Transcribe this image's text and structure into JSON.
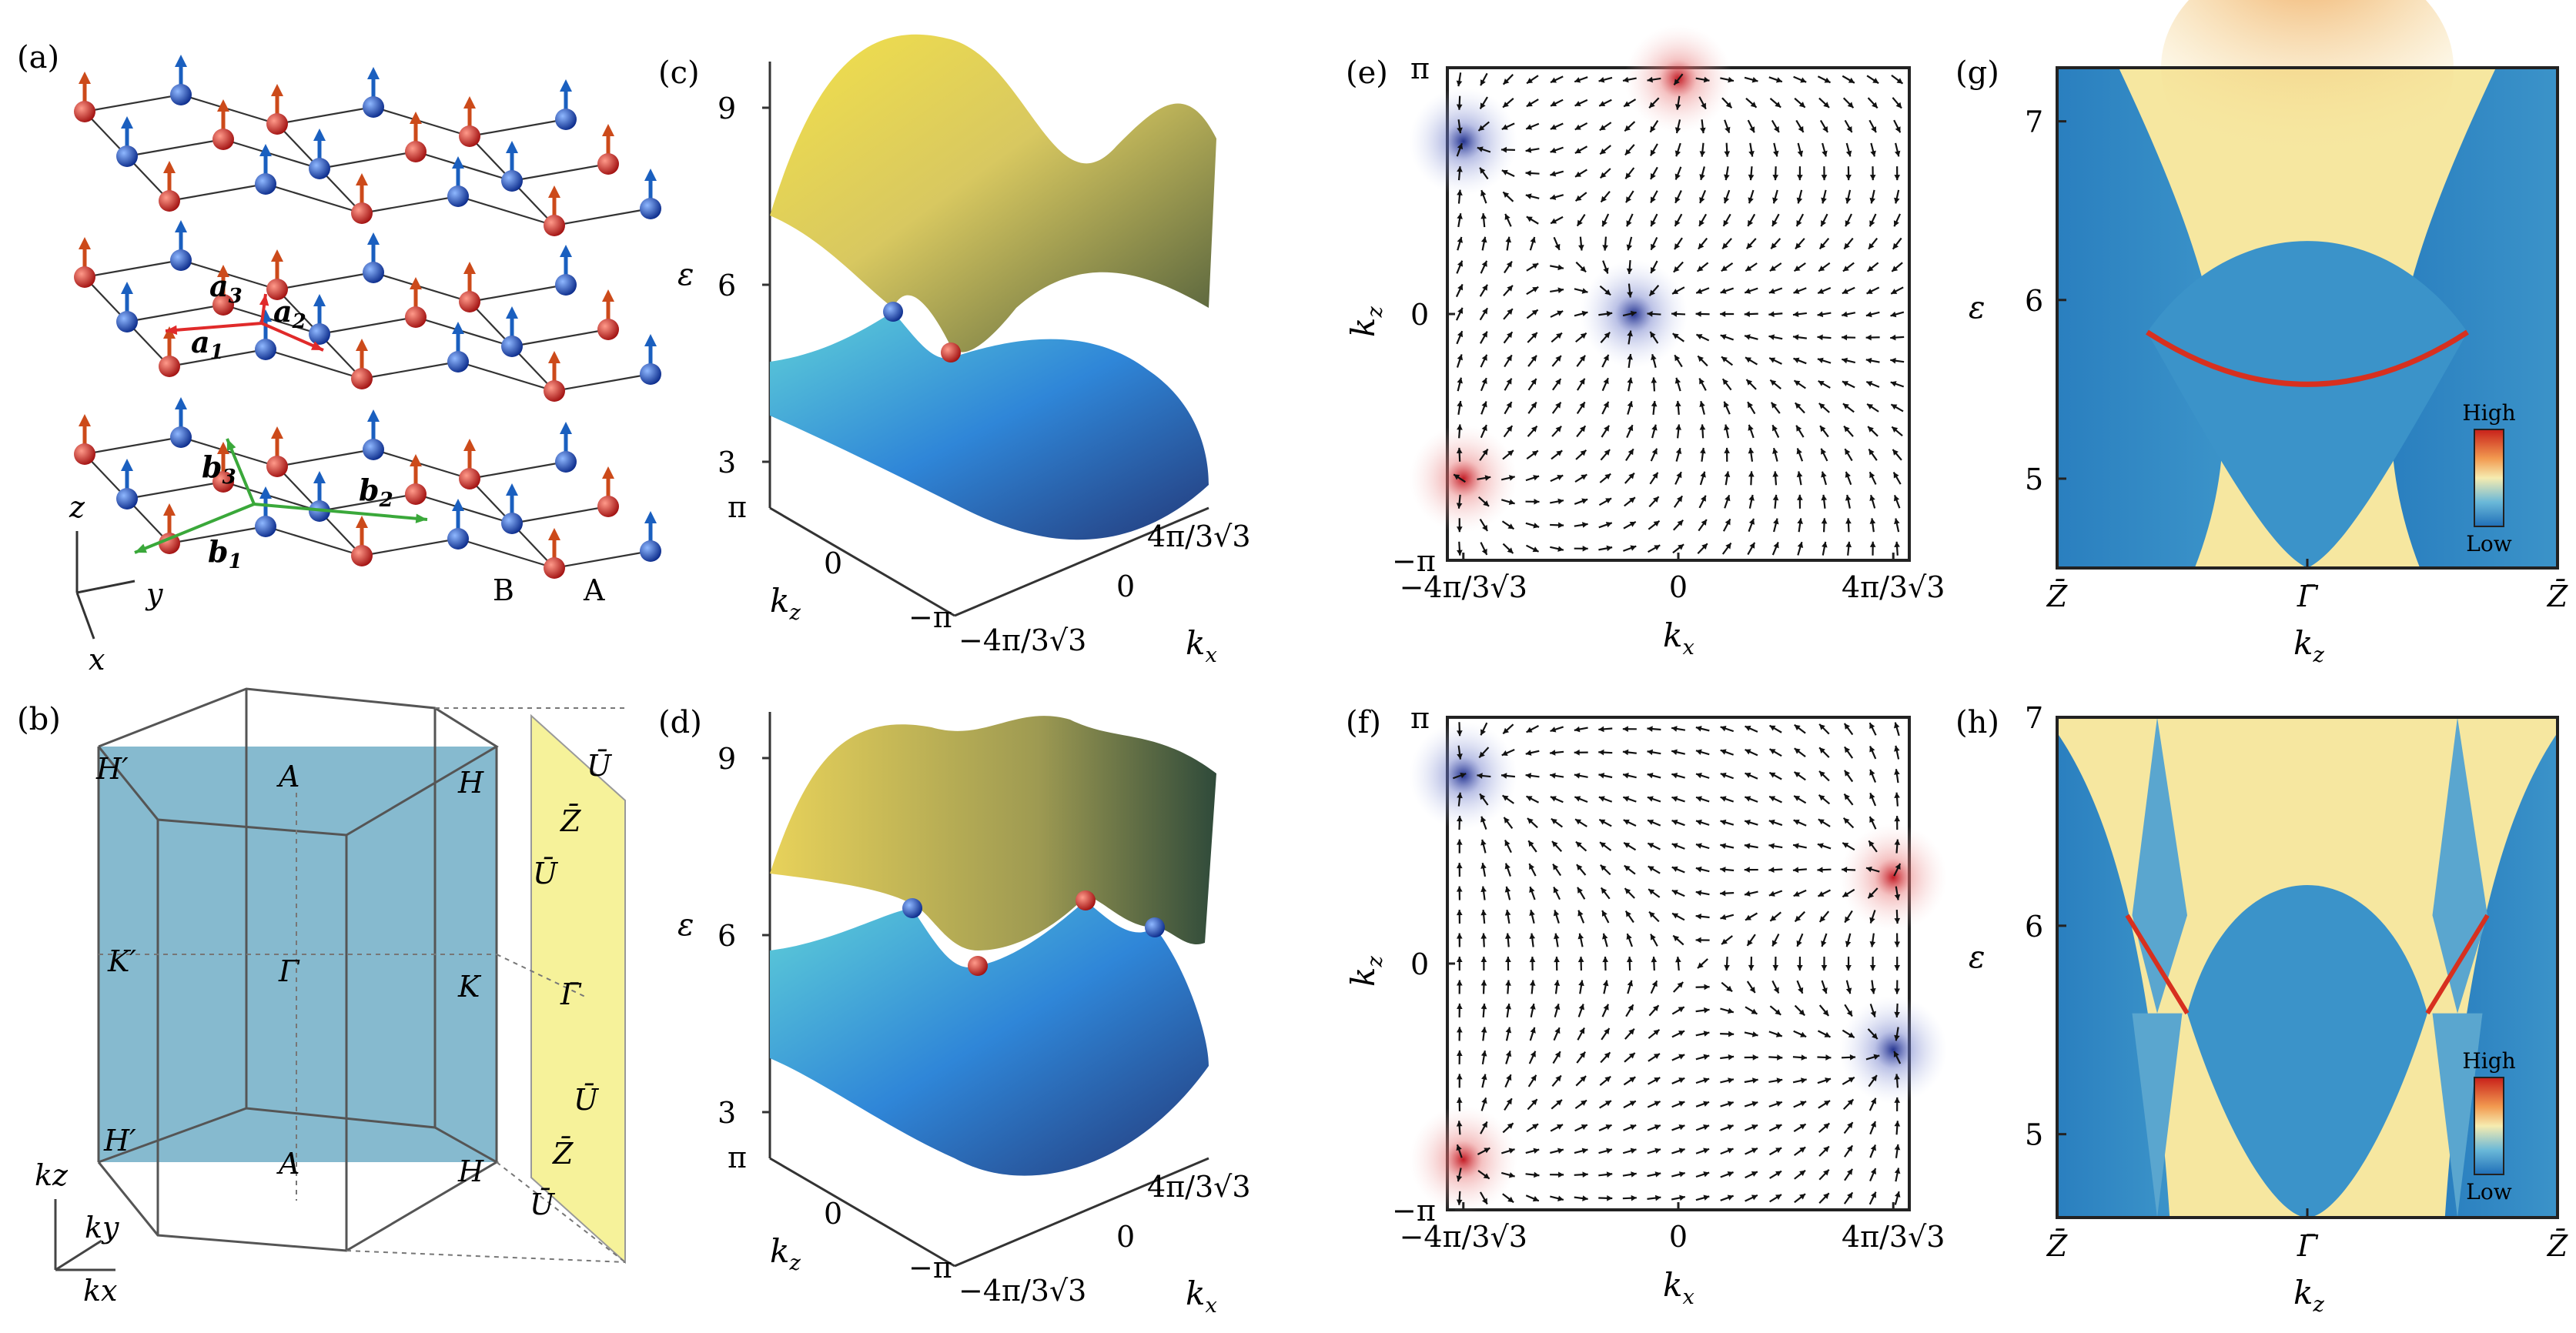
{
  "panels": {
    "a": "(a)",
    "b": "(b)",
    "c": "(c)",
    "d": "(d)",
    "e": "(e)",
    "f": "(f)",
    "g": "(g)",
    "h": "(h)"
  },
  "lattice": {
    "vectors": [
      "a1",
      "a2",
      "a3",
      "b1",
      "b2",
      "b3"
    ],
    "axes": [
      "z",
      "y",
      "x"
    ],
    "sublattices": [
      "B",
      "A"
    ],
    "colors": {
      "blue_site": "#1f5fbf",
      "red_site": "#d2501e",
      "a_vector": "#e33",
      "b_vector": "#3a3"
    }
  },
  "brillouin": {
    "points": [
      "H′",
      "A",
      "H",
      "K′",
      "Γ",
      "K",
      "H′",
      "A",
      "H"
    ],
    "surface_points": [
      "Ū",
      "Z̄",
      "Ū",
      "Γ̄",
      "Ū",
      "Z̄",
      "Ū"
    ],
    "axes": [
      "kz",
      "ky",
      "kx"
    ],
    "colors": {
      "slice": "#7fb6cc",
      "surface": "#f4f08a"
    }
  },
  "bands": {
    "eps_label": "ε",
    "eps_ticks": [
      "9",
      "6",
      "3"
    ],
    "kz_ticks": [
      "π",
      "0",
      "−π"
    ],
    "kx_ticks": [
      "4π/3√3",
      "0",
      "−4π/3√3"
    ],
    "kz_label": "k",
    "kz_sub": "z",
    "kx_label": "k",
    "kx_sub": "x"
  },
  "vector_field": {
    "y_ticks": [
      "π",
      "0",
      "−π"
    ],
    "x_ticks": [
      "−4π/3√3",
      "0",
      "4π/3√3"
    ],
    "xlabel": "k",
    "xsub": "x",
    "ylabel": "k",
    "ysub": "z"
  },
  "spectral": {
    "eps_label": "ε",
    "g_ticks": [
      "7",
      "6",
      "5"
    ],
    "h_ticks": [
      "7",
      "6",
      "5"
    ],
    "x_ticks": [
      "Z̄",
      "Γ̄",
      "Z̄"
    ],
    "xlabel": "k",
    "xsub": "z",
    "colorbar_high": "High",
    "colorbar_low": "Low",
    "colors": {
      "bulk": "#2e86c1",
      "gap": "#f6e7a0",
      "surface_state": "#d7301f"
    }
  },
  "chart_data": [
    {
      "type": "scatter",
      "panel": "e",
      "xlabel": "kx",
      "ylabel": "kz",
      "x_ticks": [
        "−4π/3√3",
        "0",
        "4π/3√3"
      ],
      "y_ticks": [
        "π",
        "0",
        "−π"
      ],
      "weyl_points": [
        {
          "kx": -2.42,
          "kz": 2.2,
          "chirality": "sink"
        },
        {
          "kx": -2.42,
          "kz": -2.1,
          "chirality": "source"
        },
        {
          "kx": -0.5,
          "kz": 0.0,
          "chirality": "sink"
        },
        {
          "kx": 0.0,
          "kz": 3.0,
          "chirality": "source"
        }
      ]
    },
    {
      "type": "scatter",
      "panel": "f",
      "xlabel": "kx",
      "ylabel": "kz",
      "x_ticks": [
        "−4π/3√3",
        "0",
        "4π/3√3"
      ],
      "y_ticks": [
        "π",
        "0",
        "−π"
      ],
      "weyl_points": [
        {
          "kx": -2.42,
          "kz": 2.4,
          "chirality": "sink"
        },
        {
          "kx": -2.42,
          "kz": -2.5,
          "chirality": "source"
        },
        {
          "kx": 2.42,
          "kz": 1.1,
          "chirality": "source"
        },
        {
          "kx": 2.42,
          "kz": -1.1,
          "chirality": "sink"
        }
      ]
    },
    {
      "type": "heatmap",
      "panel": "g",
      "xlabel": "kz",
      "ylabel": "ε",
      "x_ticks": [
        "Z̄",
        "Γ̄",
        "Z̄"
      ],
      "y_ticks": [
        "7",
        "6",
        "5"
      ],
      "ylim": [
        4.5,
        7.3
      ],
      "surface_state": [
        [
          -0.64,
          5.82
        ],
        [
          0.0,
          5.43
        ],
        [
          0.64,
          5.82
        ]
      ]
    },
    {
      "type": "heatmap",
      "panel": "h",
      "xlabel": "kz",
      "ylabel": "ε",
      "x_ticks": [
        "Z̄",
        "Γ̄",
        "Z̄"
      ],
      "y_ticks": [
        "7",
        "6",
        "5"
      ],
      "ylim": [
        4.6,
        7.0
      ],
      "surface_states": [
        [
          [
            -0.72,
            6.05
          ],
          [
            -0.48,
            5.58
          ]
        ],
        [
          [
            0.48,
            5.58
          ],
          [
            0.72,
            6.05
          ]
        ]
      ]
    }
  ]
}
